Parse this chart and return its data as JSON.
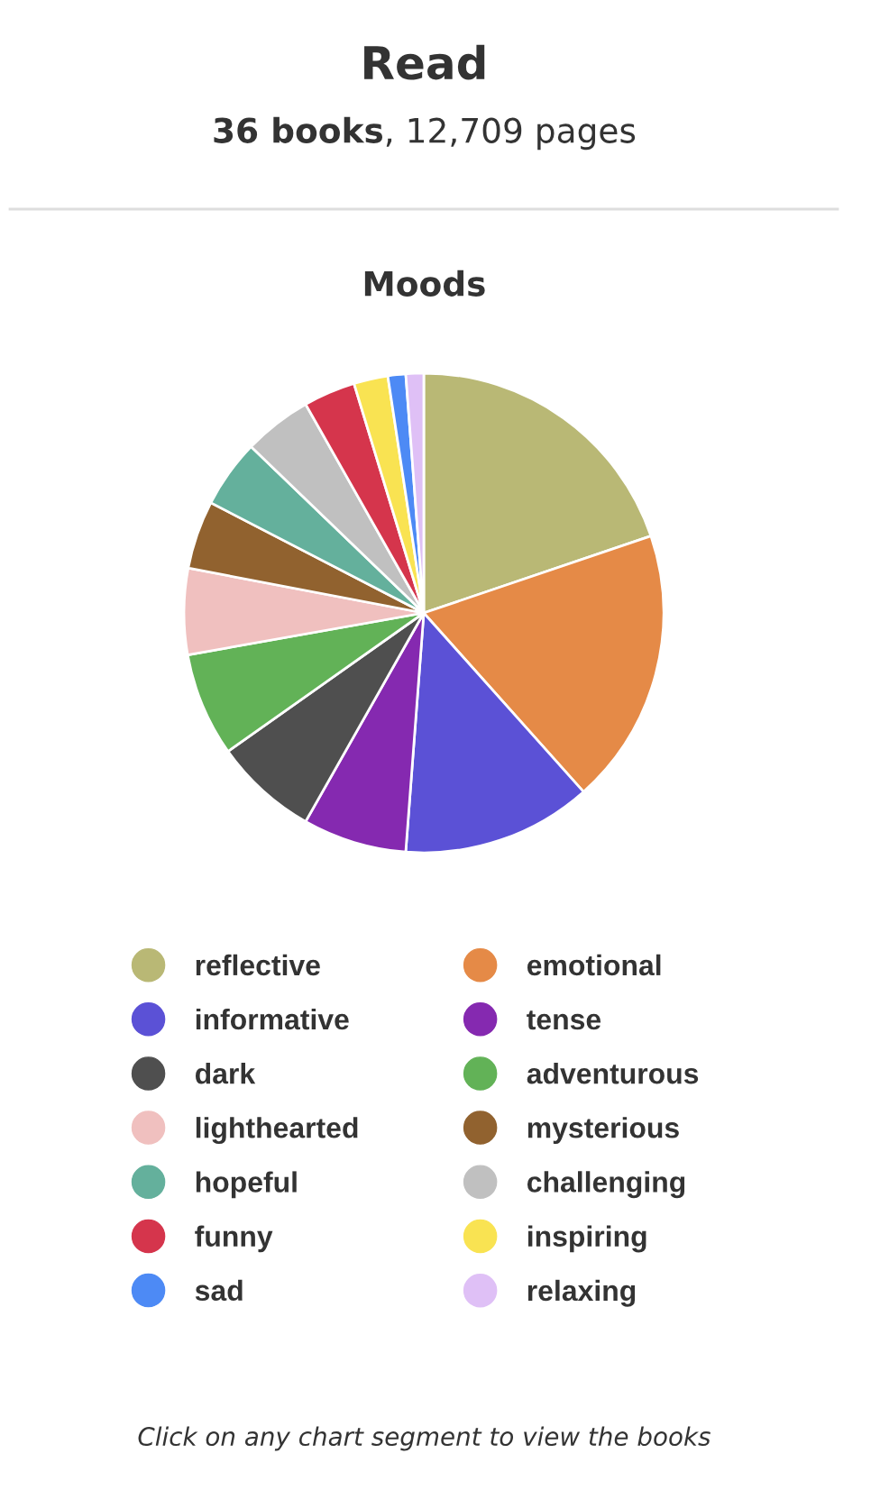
{
  "chart_data": {
    "type": "pie",
    "title": "Read",
    "subtitle": "36 books, 12,709 pages",
    "annotations": [
      "Moods",
      "Click on any chart segment to view the books"
    ],
    "categories": [
      "reflective",
      "emotional",
      "informative",
      "tense",
      "dark",
      "adventurous",
      "lighthearted",
      "mysterious",
      "hopeful",
      "challenging",
      "funny",
      "inspiring",
      "sad",
      "relaxing"
    ],
    "values": [
      19.8,
      18.6,
      12.8,
      7.0,
      7.0,
      7.0,
      5.8,
      4.6,
      4.6,
      4.6,
      3.5,
      2.3,
      1.2,
      1.2
    ],
    "colors": [
      "#b9b875",
      "#e58a47",
      "#5b51d6",
      "#8529b0",
      "#4f4f4f",
      "#62b257",
      "#f0c0bf",
      "#91622f",
      "#64b09c",
      "#c0c0c0",
      "#d5354c",
      "#f9e352",
      "#4d8af5",
      "#dfc0f6"
    ],
    "legend": "bottom"
  }
}
